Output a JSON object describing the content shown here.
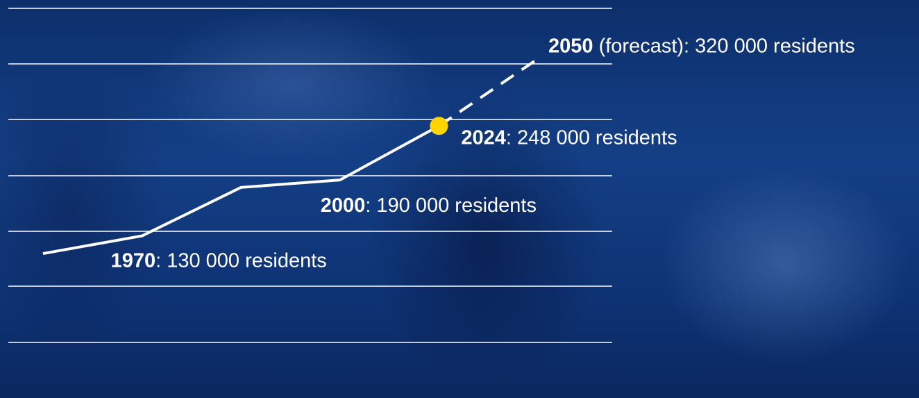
{
  "chart_data": {
    "type": "line",
    "categories": [
      null,
      "1970",
      null,
      "2000",
      "2024",
      "2050"
    ],
    "values": [
      111000,
      130000,
      182000,
      190000,
      248000,
      null
    ],
    "value_labels": [
      null,
      ": 130 000 residents",
      null,
      ": 190 000 residents",
      ": 248 000 residents",
      null
    ],
    "forecast_values": [
      null,
      null,
      null,
      null,
      248000,
      320000
    ],
    "forecast_labels": [
      null,
      null,
      null,
      null,
      null,
      " (forecast): 320 000 residents"
    ],
    "color": "#ffffff",
    "marker_color": "#ffd400",
    "ylim": [
      0,
      360000
    ]
  }
}
